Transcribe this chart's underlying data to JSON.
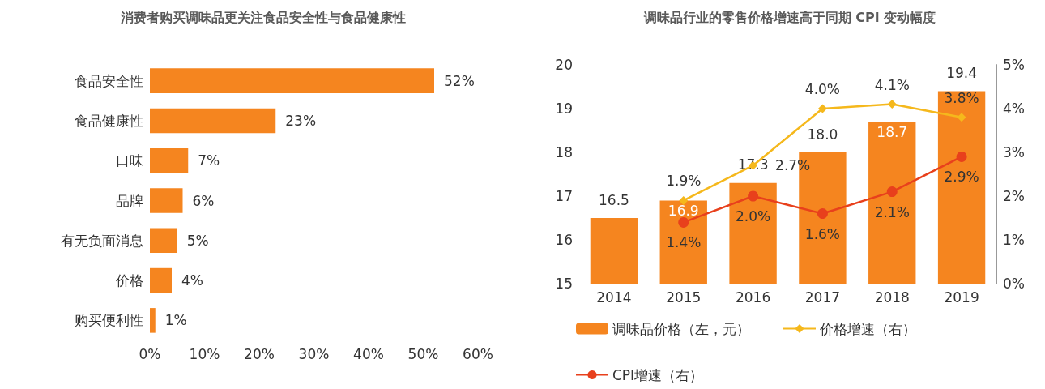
{
  "chart_data": [
    {
      "type": "bar",
      "title": "消费者购买调味品更关注食品安全性与食品健康性",
      "orientation": "horizontal",
      "categories": [
        "食品安全性",
        "食品健康性",
        "口味",
        "品牌",
        "有无负面消息",
        "价格",
        "购买便利性"
      ],
      "values": [
        52,
        23,
        7,
        6,
        5,
        4,
        1
      ],
      "color": "#f5851f",
      "value_labels": [
        "52%",
        "23%",
        "7%",
        "6%",
        "5%",
        "4%",
        "1%"
      ],
      "xlim": [
        0,
        60
      ],
      "xticks": [
        {
          "value": 0,
          "label": "0%"
        },
        {
          "value": 10,
          "label": "10%"
        },
        {
          "value": 20,
          "label": "20%"
        },
        {
          "value": 30,
          "label": "30%"
        },
        {
          "value": 40,
          "label": "40%"
        },
        {
          "value": 50,
          "label": "50%"
        },
        {
          "value": 60,
          "label": "60%"
        }
      ]
    },
    {
      "type": "bar",
      "title": "调味品行业的零售价格增速高于同期 CPI 变动幅度",
      "categories": [
        "2014",
        "2015",
        "2016",
        "2017",
        "2018",
        "2019"
      ],
      "series": [
        {
          "name": "调味品价格（左，元）",
          "color": "#f5851f",
          "values": [
            16.5,
            16.9,
            17.3,
            18.0,
            18.7,
            19.4
          ],
          "value_labels": [
            "16.5",
            "16.9",
            "17.3",
            "18.0",
            "18.7",
            "19.4"
          ]
        },
        {
          "type": "line",
          "name": "价格增速（右）",
          "color": "#f5b81c",
          "axis": "y2",
          "marker": "diamond",
          "values": [
            null,
            1.9,
            2.7,
            4.0,
            4.1,
            3.8
          ],
          "value_labels": [
            null,
            "1.9%",
            "2.7%",
            "4.0%",
            "4.1%",
            "3.8%"
          ]
        },
        {
          "type": "line",
          "name": "CPI增速（右）",
          "color": "#e8401c",
          "axis": "y2",
          "marker": "circle",
          "values": [
            null,
            1.4,
            2.0,
            1.6,
            2.1,
            2.9
          ],
          "value_labels": [
            null,
            "1.4%",
            "2.0%",
            "1.6%",
            "2.1%",
            "2.9%"
          ]
        }
      ],
      "ylim": [
        15,
        20
      ],
      "yticks": [
        15,
        16,
        17,
        18,
        19,
        20
      ],
      "y2lim": [
        0,
        5
      ],
      "y2ticks": [
        {
          "value": 0,
          "label": "0%"
        },
        {
          "value": 1,
          "label": "1%"
        },
        {
          "value": 2,
          "label": "2%"
        },
        {
          "value": 3,
          "label": "3%"
        },
        {
          "value": 4,
          "label": "4%"
        },
        {
          "value": 5,
          "label": "5%"
        }
      ],
      "legend": "bottom"
    }
  ]
}
